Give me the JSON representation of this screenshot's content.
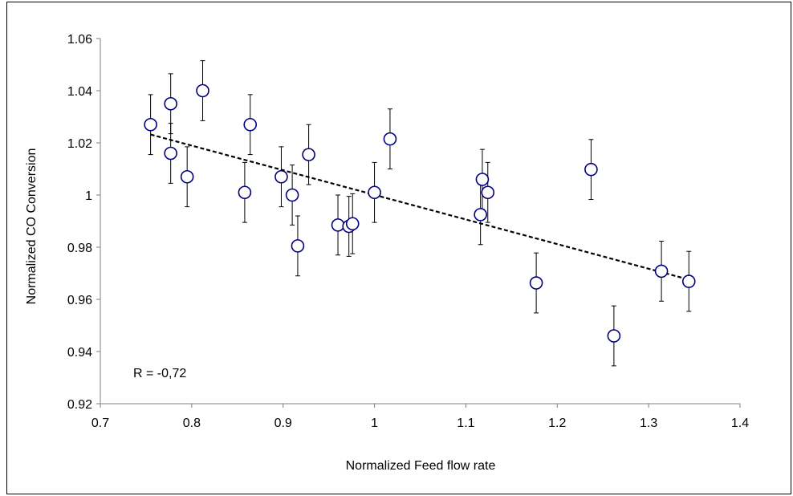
{
  "chart_data": {
    "type": "scatter",
    "xlabel": "Normalized Feed flow rate",
    "ylabel": "Normalized CO Conversion",
    "xlim": [
      0.7,
      1.4
    ],
    "ylim": [
      0.92,
      1.06
    ],
    "x_ticks": [
      0.7,
      0.8,
      0.9,
      1.0,
      1.1,
      1.2,
      1.3,
      1.4
    ],
    "x_tick_labels": [
      "0.7",
      "0.8",
      "0.9",
      "1",
      "1.1",
      "1.2",
      "1.3",
      "1.4"
    ],
    "y_ticks": [
      0.92,
      0.94,
      0.96,
      0.98,
      1.0,
      1.02,
      1.04,
      1.06
    ],
    "y_tick_labels": [
      "0.92",
      "0.94",
      "0.96",
      "0.98",
      "1",
      "1.02",
      "1.04",
      "1.06"
    ],
    "grid": false,
    "annotation": "R = -0,72",
    "marker_color": "#00007f",
    "trendline": {
      "style": "dashed",
      "color": "#000000",
      "x": [
        0.755,
        1.345
      ],
      "y": [
        1.0232,
        0.9675
      ]
    },
    "points": [
      {
        "x": 0.755,
        "y": 1.027,
        "err": 0.0115
      },
      {
        "x": 0.777,
        "y": 1.035,
        "err": 0.0115
      },
      {
        "x": 0.777,
        "y": 1.016,
        "err": 0.0115
      },
      {
        "x": 0.795,
        "y": 1.007,
        "err": 0.0115
      },
      {
        "x": 0.812,
        "y": 1.04,
        "err": 0.0115
      },
      {
        "x": 0.858,
        "y": 1.001,
        "err": 0.0115
      },
      {
        "x": 0.864,
        "y": 1.027,
        "err": 0.0115
      },
      {
        "x": 0.898,
        "y": 1.007,
        "err": 0.0115
      },
      {
        "x": 0.91,
        "y": 1.0,
        "err": 0.0115
      },
      {
        "x": 0.916,
        "y": 0.9805,
        "err": 0.0115
      },
      {
        "x": 0.928,
        "y": 1.0155,
        "err": 0.0115
      },
      {
        "x": 0.96,
        "y": 0.9885,
        "err": 0.0115
      },
      {
        "x": 0.972,
        "y": 0.988,
        "err": 0.0115
      },
      {
        "x": 0.976,
        "y": 0.989,
        "err": 0.0115
      },
      {
        "x": 1.0,
        "y": 1.001,
        "err": 0.0115
      },
      {
        "x": 1.017,
        "y": 1.0215,
        "err": 0.0115
      },
      {
        "x": 1.116,
        "y": 0.9925,
        "err": 0.0115
      },
      {
        "x": 1.118,
        "y": 1.006,
        "err": 0.0115
      },
      {
        "x": 1.124,
        "y": 1.001,
        "err": 0.0115
      },
      {
        "x": 1.177,
        "y": 0.9663,
        "err": 0.0115
      },
      {
        "x": 1.237,
        "y": 1.0098,
        "err": 0.0115
      },
      {
        "x": 1.262,
        "y": 0.946,
        "err": 0.0115
      },
      {
        "x": 1.314,
        "y": 0.9708,
        "err": 0.0115
      },
      {
        "x": 1.344,
        "y": 0.9669,
        "err": 0.0115
      }
    ]
  }
}
